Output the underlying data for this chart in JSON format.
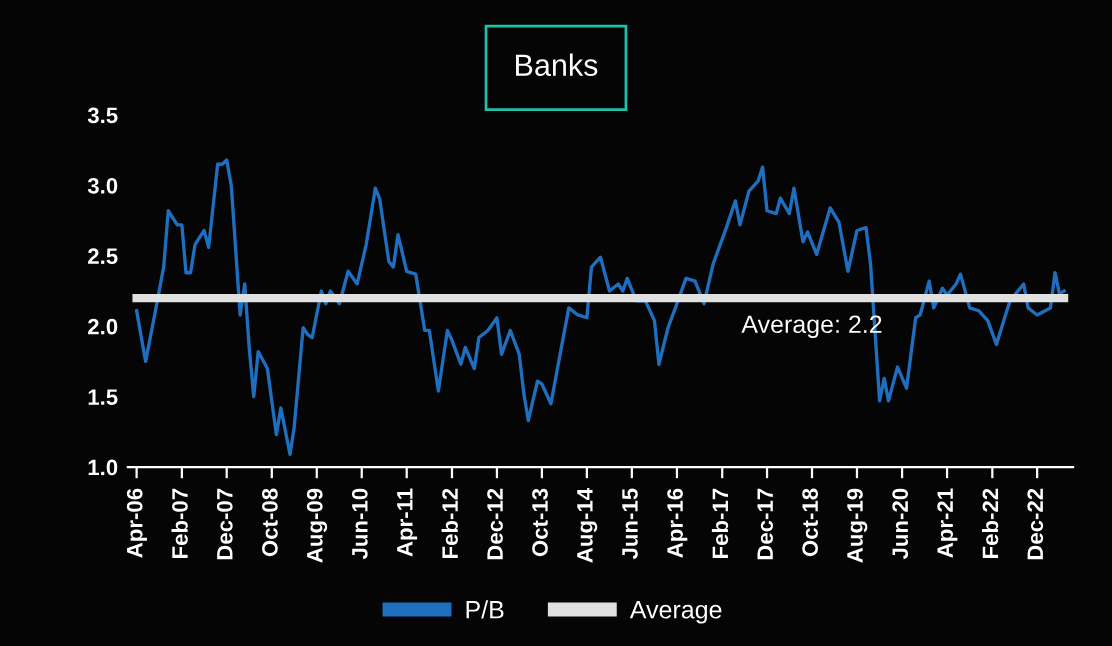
{
  "chart_data": {
    "type": "line",
    "title": "Banks",
    "x": [
      "2006-04",
      "2006-06",
      "2006-08",
      "2006-10",
      "2006-11",
      "2007-01",
      "2007-02",
      "2007-03",
      "2007-04",
      "2007-05",
      "2007-07",
      "2007-08",
      "2007-10",
      "2007-11",
      "2007-12",
      "2008-01",
      "2008-03",
      "2008-04",
      "2008-05",
      "2008-06",
      "2008-07",
      "2008-09",
      "2008-11",
      "2008-12",
      "2009-02",
      "2009-03",
      "2009-05",
      "2009-06",
      "2009-07",
      "2009-09",
      "2009-10",
      "2009-11",
      "2010-01",
      "2010-03",
      "2010-05",
      "2010-07",
      "2010-09",
      "2010-10",
      "2010-12",
      "2011-01",
      "2011-02",
      "2011-04",
      "2011-06",
      "2011-08",
      "2011-09",
      "2011-11",
      "2012-01",
      "2012-02",
      "2012-04",
      "2012-05",
      "2012-07",
      "2012-08",
      "2012-10",
      "2012-12",
      "2013-01",
      "2013-03",
      "2013-05",
      "2013-06",
      "2013-07",
      "2013-09",
      "2013-10",
      "2013-12",
      "2014-02",
      "2014-04",
      "2014-06",
      "2014-08",
      "2014-09",
      "2014-11",
      "2015-01",
      "2015-03",
      "2015-04",
      "2015-05",
      "2015-07",
      "2015-09",
      "2015-11",
      "2015-12",
      "2016-02",
      "2016-04",
      "2016-06",
      "2016-08",
      "2016-10",
      "2016-12",
      "2017-03",
      "2017-05",
      "2017-06",
      "2017-08",
      "2017-10",
      "2017-11",
      "2017-12",
      "2018-02",
      "2018-03",
      "2018-05",
      "2018-06",
      "2018-08",
      "2018-09",
      "2018-11",
      "2019-02",
      "2019-04",
      "2019-06",
      "2019-08",
      "2019-10",
      "2019-11",
      "2020-01",
      "2020-02",
      "2020-03",
      "2020-05",
      "2020-07",
      "2020-09",
      "2020-10",
      "2020-12",
      "2021-01",
      "2021-03",
      "2021-04",
      "2021-06",
      "2021-07",
      "2021-09",
      "2021-11",
      "2022-01",
      "2022-03",
      "2022-05",
      "2022-06",
      "2022-09",
      "2022-10",
      "2022-12",
      "2023-03",
      "2023-04",
      "2023-05",
      "2023-06"
    ],
    "series": [
      {
        "name": "P/B",
        "color": "#1f6fc0",
        "values": [
          2.11,
          1.75,
          2.08,
          2.42,
          2.82,
          2.72,
          2.72,
          2.38,
          2.38,
          2.58,
          2.68,
          2.56,
          3.15,
          3.15,
          3.18,
          3.0,
          2.08,
          2.3,
          1.85,
          1.5,
          1.82,
          1.7,
          1.23,
          1.42,
          1.09,
          1.28,
          1.99,
          1.94,
          1.92,
          2.25,
          2.16,
          2.25,
          2.16,
          2.39,
          2.3,
          2.58,
          2.98,
          2.9,
          2.46,
          2.42,
          2.65,
          2.39,
          2.37,
          1.97,
          1.97,
          1.54,
          1.97,
          1.9,
          1.73,
          1.85,
          1.7,
          1.92,
          1.97,
          2.06,
          1.8,
          1.97,
          1.8,
          1.52,
          1.33,
          1.61,
          1.59,
          1.45,
          1.8,
          2.13,
          2.08,
          2.06,
          2.42,
          2.49,
          2.25,
          2.3,
          2.25,
          2.34,
          2.18,
          2.18,
          2.04,
          1.73,
          1.99,
          2.16,
          2.34,
          2.32,
          2.16,
          2.44,
          2.7,
          2.89,
          2.72,
          2.96,
          3.03,
          3.13,
          2.82,
          2.8,
          2.91,
          2.8,
          2.98,
          2.6,
          2.67,
          2.51,
          2.84,
          2.74,
          2.39,
          2.68,
          2.7,
          2.44,
          1.47,
          1.63,
          1.47,
          1.71,
          1.56,
          2.06,
          2.08,
          2.32,
          2.13,
          2.27,
          2.22,
          2.3,
          2.37,
          2.13,
          2.11,
          2.04,
          1.87,
          2.08,
          2.18,
          2.3,
          2.13,
          2.08,
          2.13,
          2.38,
          2.23,
          2.25
        ]
      },
      {
        "name": "Average",
        "color": "#e0e0e0",
        "x": [
          "2006-04",
          "2023-06"
        ],
        "values": [
          2.2,
          2.2
        ]
      }
    ],
    "annotations": [
      {
        "text": "Average: 2.2",
        "x": "2018-10",
        "y": 2.2
      }
    ],
    "xlim": [
      "2006-02",
      "2023-08"
    ],
    "xticks": [
      {
        "value": "2006-04",
        "label": "Apr-06"
      },
      {
        "value": "2007-02",
        "label": "Feb-07"
      },
      {
        "value": "2007-12",
        "label": "Dec-07"
      },
      {
        "value": "2008-10",
        "label": "Oct-08"
      },
      {
        "value": "2009-08",
        "label": "Aug-09"
      },
      {
        "value": "2010-06",
        "label": "Jun-10"
      },
      {
        "value": "2011-04",
        "label": "Apr-11"
      },
      {
        "value": "2012-02",
        "label": "Feb-12"
      },
      {
        "value": "2012-12",
        "label": "Dec-12"
      },
      {
        "value": "2013-10",
        "label": "Oct-13"
      },
      {
        "value": "2014-08",
        "label": "Aug-14"
      },
      {
        "value": "2015-06",
        "label": "Jun-15"
      },
      {
        "value": "2016-04",
        "label": "Apr-16"
      },
      {
        "value": "2017-02",
        "label": "Feb-17"
      },
      {
        "value": "2017-12",
        "label": "Dec-17"
      },
      {
        "value": "2018-10",
        "label": "Oct-18"
      },
      {
        "value": "2019-08",
        "label": "Aug-19"
      },
      {
        "value": "2020-06",
        "label": "Jun-20"
      },
      {
        "value": "2021-04",
        "label": "Apr-21"
      },
      {
        "value": "2022-02",
        "label": "Feb-22"
      },
      {
        "value": "2022-12",
        "label": "Dec-22"
      }
    ],
    "ylim": [
      1.0,
      3.5
    ],
    "yticks": [
      {
        "value": 1.0,
        "label": "1.0"
      },
      {
        "value": 1.5,
        "label": "1.5"
      },
      {
        "value": 2.0,
        "label": "2.0"
      },
      {
        "value": 2.5,
        "label": "2.5"
      },
      {
        "value": 3.0,
        "label": "3.0"
      },
      {
        "value": 3.5,
        "label": "3.5"
      }
    ],
    "grid": false,
    "legend": "bottom",
    "marker": "none",
    "line_style": "solid"
  }
}
